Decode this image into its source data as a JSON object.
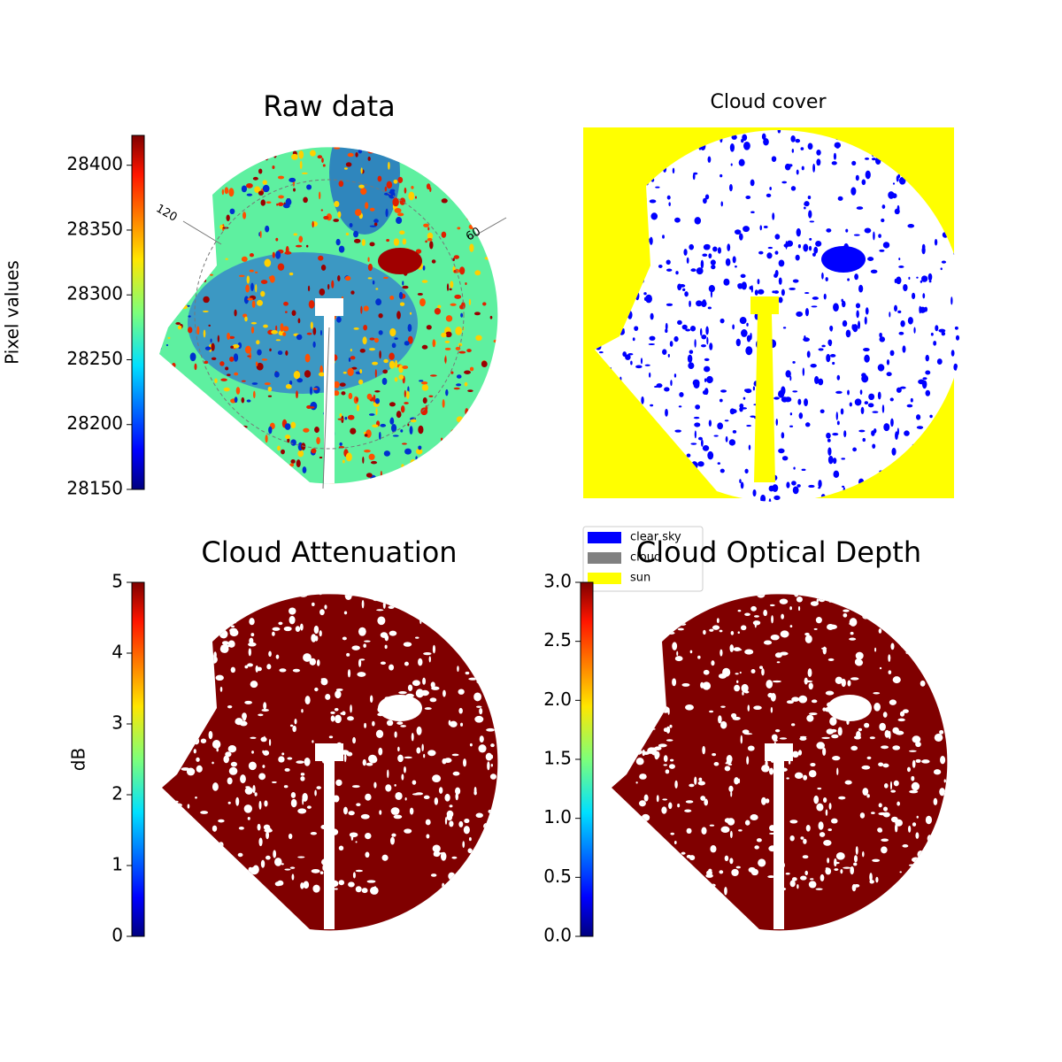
{
  "chart_data": [
    {
      "type": "image",
      "title": "Raw data",
      "colormap": "jet",
      "colorbar_label": "Pixel values",
      "colorbar_lim": [
        28150,
        28423
      ],
      "colorbar_ticks": [
        28150,
        28200,
        28250,
        28300,
        28350,
        28400
      ],
      "annotations": [
        "120",
        "60"
      ]
    },
    {
      "type": "categorical_image",
      "title": "Cloud cover",
      "categories": [
        "clear sky",
        "cloud",
        "sun"
      ],
      "colors": [
        "#0000ff",
        "#808080",
        "#ffff00"
      ]
    },
    {
      "type": "image",
      "title": "Cloud Attenuation",
      "colormap": "jet",
      "colorbar_label": "dB",
      "color": "#800000",
      "colorbar_lim": [
        0,
        5
      ],
      "colorbar_ticks": [
        0,
        1,
        2,
        3,
        4,
        5
      ]
    },
    {
      "type": "image",
      "title": "Cloud Optical Depth",
      "colormap": "jet",
      "color": "#800000",
      "colorbar_lim": [
        0,
        3
      ],
      "colorbar_ticks": [
        {
          "value": 0,
          "label": "0.0"
        },
        0.5,
        {
          "value": 1,
          "label": "1.0"
        },
        1.5,
        {
          "value": 2,
          "label": "2.0"
        },
        2.5,
        {
          "value": 3,
          "label": "3.0"
        }
      ]
    }
  ]
}
